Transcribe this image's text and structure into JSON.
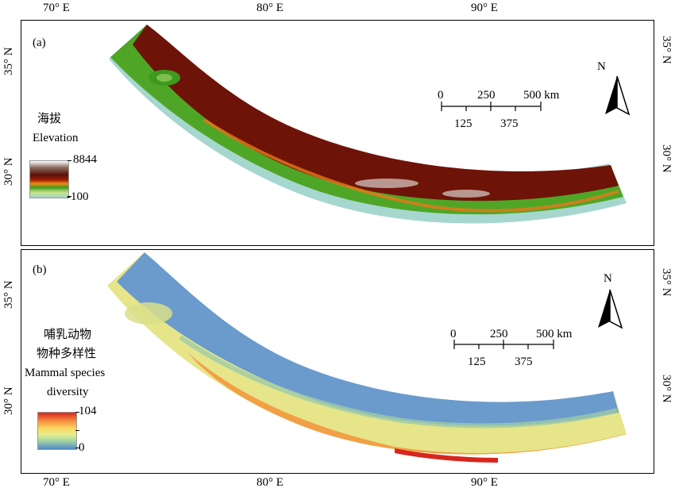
{
  "axes": {
    "top_lon": [
      "70° E",
      "80° E",
      "90° E"
    ],
    "bottom_lon": [
      "70° E",
      "80° E",
      "90° E"
    ],
    "lat_a": [
      "35° N",
      "30° N"
    ],
    "lat_b": [
      "35° N",
      "30° N"
    ]
  },
  "panel_a": {
    "label": "(a)",
    "legend_title_cn": "海拔",
    "legend_title_en": "Elevation",
    "legend_max": "8844",
    "legend_min": "-100",
    "legend_colors": [
      "#ffffff",
      "#8a6a5e",
      "#5a0f08",
      "#a11f06",
      "#f08a14",
      "#3c9a1e",
      "#c7e28a",
      "#a6d7cf"
    ],
    "scalebar": {
      "top": [
        "0",
        "250",
        "500 km"
      ],
      "bottom": [
        "125",
        "375"
      ]
    },
    "north": "N"
  },
  "panel_b": {
    "label": "(b)",
    "legend_title_lines": [
      "哺乳动物",
      "物种多样性",
      "Mammal species",
      "diversity"
    ],
    "legend_max": "104",
    "legend_min": "0",
    "legend_colors": [
      "#d7261d",
      "#f58a3c",
      "#fbd35e",
      "#e6ef8e",
      "#a3d2a6",
      "#4f89c6"
    ],
    "scalebar": {
      "top": [
        "0",
        "250",
        "500 km"
      ],
      "bottom": [
        "125",
        "375"
      ]
    },
    "north": "N"
  }
}
